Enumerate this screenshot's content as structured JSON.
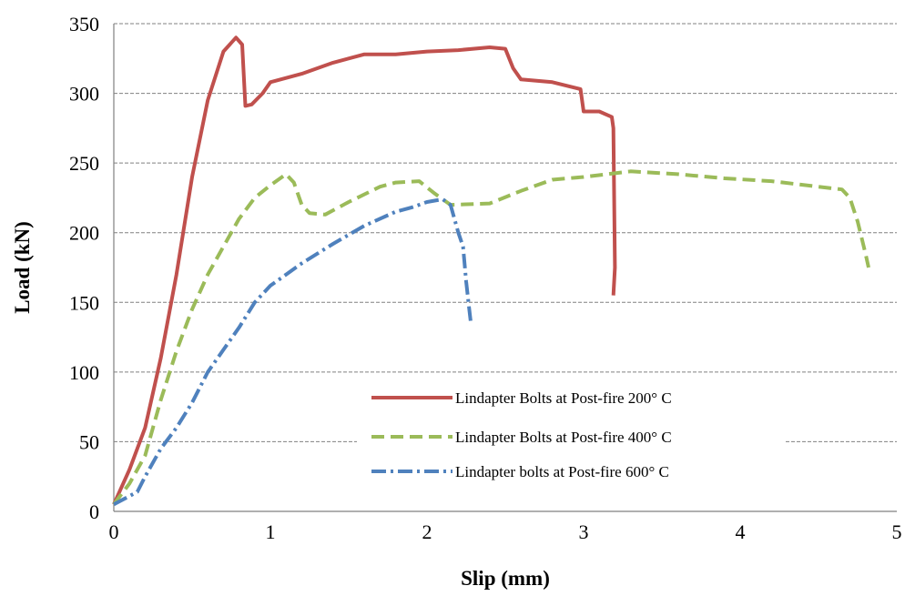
{
  "chart_data": {
    "type": "line",
    "title": "",
    "xlabel": "Slip (mm)",
    "ylabel": "Load (kN)",
    "xlim": [
      0,
      5
    ],
    "ylim": [
      0,
      350
    ],
    "x_ticks": [
      "0",
      "1",
      "2",
      "3",
      "4",
      "5"
    ],
    "y_ticks": [
      "0",
      "50",
      "100",
      "150",
      "200",
      "250",
      "300",
      "350"
    ],
    "grid": "horizontal dashed",
    "legend_position": "center-right",
    "series": [
      {
        "name": "Lindapter Bolts at Post-fire 200° C",
        "color": "#C0504D",
        "style": "solid",
        "points": [
          [
            0,
            5
          ],
          [
            0.1,
            30
          ],
          [
            0.2,
            60
          ],
          [
            0.3,
            110
          ],
          [
            0.4,
            170
          ],
          [
            0.5,
            240
          ],
          [
            0.6,
            295
          ],
          [
            0.7,
            330
          ],
          [
            0.78,
            340
          ],
          [
            0.82,
            335
          ],
          [
            0.84,
            291
          ],
          [
            0.88,
            292
          ],
          [
            0.95,
            300
          ],
          [
            1.0,
            308
          ],
          [
            1.2,
            314
          ],
          [
            1.4,
            322
          ],
          [
            1.6,
            328
          ],
          [
            1.8,
            328
          ],
          [
            2.0,
            330
          ],
          [
            2.2,
            331
          ],
          [
            2.4,
            333
          ],
          [
            2.5,
            332
          ],
          [
            2.55,
            318
          ],
          [
            2.6,
            310
          ],
          [
            2.8,
            308
          ],
          [
            2.98,
            303
          ],
          [
            3.0,
            287
          ],
          [
            3.1,
            287
          ],
          [
            3.18,
            283
          ],
          [
            3.19,
            275
          ],
          [
            3.2,
            175
          ],
          [
            3.19,
            155
          ]
        ]
      },
      {
        "name": "Lindapter Bolts at Post-fire 400° C",
        "color": "#9BBB59",
        "style": "dashed",
        "points": [
          [
            0,
            5
          ],
          [
            0.1,
            20
          ],
          [
            0.2,
            40
          ],
          [
            0.3,
            80
          ],
          [
            0.4,
            115
          ],
          [
            0.5,
            145
          ],
          [
            0.6,
            170
          ],
          [
            0.7,
            190
          ],
          [
            0.8,
            210
          ],
          [
            0.9,
            225
          ],
          [
            1.0,
            234
          ],
          [
            1.1,
            242
          ],
          [
            1.15,
            236
          ],
          [
            1.2,
            220
          ],
          [
            1.25,
            214
          ],
          [
            1.35,
            213
          ],
          [
            1.5,
            222
          ],
          [
            1.7,
            233
          ],
          [
            1.8,
            236
          ],
          [
            1.95,
            237
          ],
          [
            2.05,
            228
          ],
          [
            2.15,
            220
          ],
          [
            2.4,
            221
          ],
          [
            2.6,
            230
          ],
          [
            2.8,
            238
          ],
          [
            3.0,
            240
          ],
          [
            3.3,
            244
          ],
          [
            3.6,
            242
          ],
          [
            3.9,
            239
          ],
          [
            4.2,
            237
          ],
          [
            4.5,
            233
          ],
          [
            4.65,
            231
          ],
          [
            4.7,
            225
          ],
          [
            4.75,
            208
          ],
          [
            4.8,
            185
          ],
          [
            4.82,
            175
          ]
        ]
      },
      {
        "name": "Lindapter bolts at Post-fire 600° C",
        "color": "#4F81BD",
        "style": "dash-dot",
        "points": [
          [
            0,
            5
          ],
          [
            0.15,
            14
          ],
          [
            0.2,
            25
          ],
          [
            0.3,
            45
          ],
          [
            0.4,
            60
          ],
          [
            0.5,
            78
          ],
          [
            0.6,
            100
          ],
          [
            0.7,
            116
          ],
          [
            0.8,
            132
          ],
          [
            0.9,
            150
          ],
          [
            1.0,
            162
          ],
          [
            1.1,
            170
          ],
          [
            1.2,
            178
          ],
          [
            1.3,
            185
          ],
          [
            1.4,
            192
          ],
          [
            1.6,
            205
          ],
          [
            1.8,
            215
          ],
          [
            1.9,
            218
          ],
          [
            2.0,
            222
          ],
          [
            2.1,
            224
          ],
          [
            2.15,
            220
          ],
          [
            2.2,
            200
          ],
          [
            2.23,
            190
          ],
          [
            2.25,
            165
          ],
          [
            2.27,
            145
          ],
          [
            2.28,
            135
          ]
        ]
      }
    ]
  }
}
